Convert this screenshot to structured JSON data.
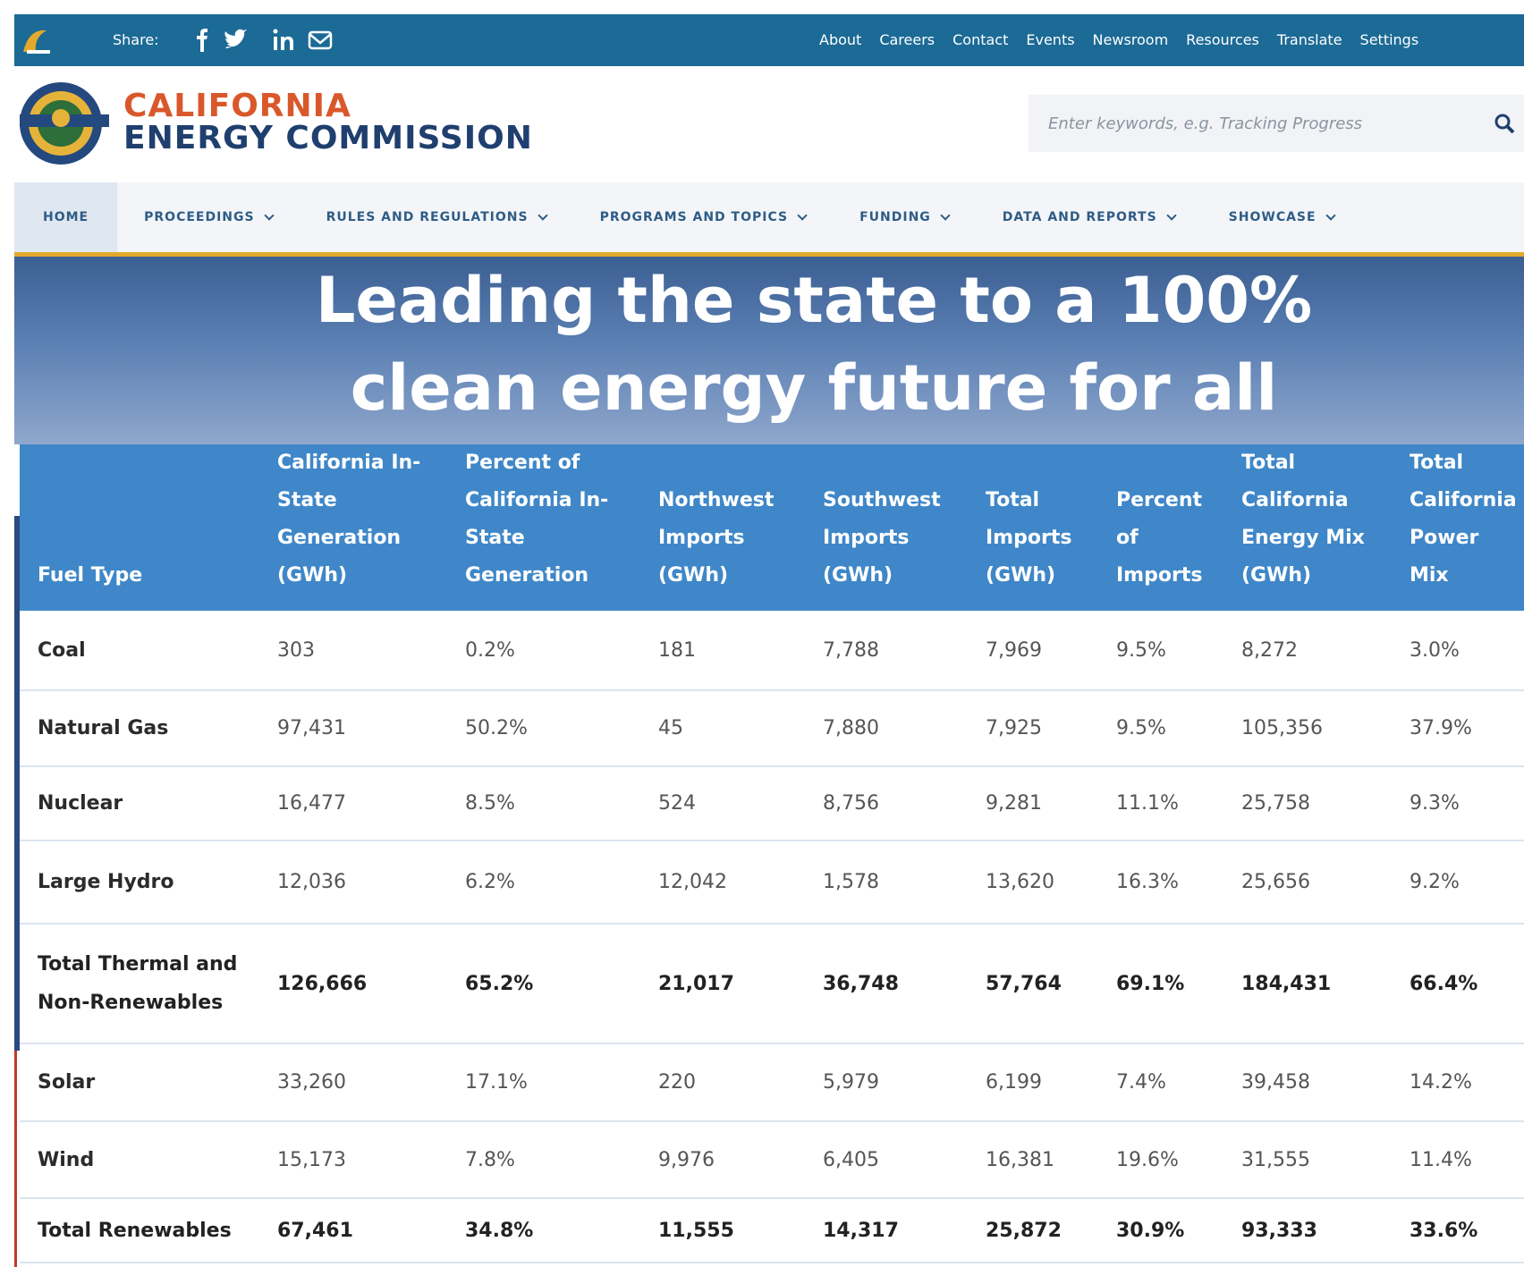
{
  "topbar": {
    "share_label": "Share:",
    "links": [
      "About",
      "Careers",
      "Contact",
      "Events",
      "Newsroom",
      "Resources",
      "Translate",
      "Settings"
    ]
  },
  "header": {
    "title_line1": "CALIFORNIA",
    "title_line2": "ENERGY COMMISSION",
    "search_placeholder": "Enter keywords, e.g. Tracking Progress"
  },
  "nav": [
    "HOME",
    "PROCEEDINGS",
    "RULES AND REGULATIONS",
    "PROGRAMS AND TOPICS",
    "FUNDING",
    "DATA AND REPORTS",
    "SHOWCASE"
  ],
  "hero": {
    "headline_line1": "Leading the state to a 100%",
    "headline_line2": "clean energy future for all"
  },
  "table": {
    "columns": [
      "Fuel Type",
      "California In-State Generation (GWh)",
      "Percent of California In-State Generation",
      "Northwest Imports (GWh)",
      "Southwest Imports (GWh)",
      "Total Imports (GWh)",
      "Percent of Imports",
      "Total California Energy Mix (GWh)",
      "Total California Power Mix"
    ],
    "rows": [
      {
        "bold": false,
        "cells": [
          "Coal",
          "303",
          "0.2%",
          "181",
          "7,788",
          "7,969",
          "9.5%",
          "8,272",
          "3.0%"
        ]
      },
      {
        "bold": false,
        "cells": [
          "Natural Gas",
          "97,431",
          "50.2%",
          "45",
          "7,880",
          "7,925",
          "9.5%",
          "105,356",
          "37.9%"
        ]
      },
      {
        "bold": false,
        "cells": [
          "Nuclear",
          "16,477",
          "8.5%",
          "524",
          "8,756",
          "9,281",
          "11.1%",
          "25,758",
          "9.3%"
        ]
      },
      {
        "bold": false,
        "cells": [
          "Large Hydro",
          "12,036",
          "6.2%",
          "12,042",
          "1,578",
          "13,620",
          "16.3%",
          "25,656",
          "9.2%"
        ]
      },
      {
        "bold": true,
        "cells": [
          "Total Thermal and Non-Renewables",
          "126,666",
          "65.2%",
          "21,017",
          "36,748",
          "57,764",
          "69.1%",
          "184,431",
          "66.4%"
        ]
      },
      {
        "bold": false,
        "cells": [
          "Solar",
          "33,260",
          "17.1%",
          "220",
          "5,979",
          "6,199",
          "7.4%",
          "39,458",
          "14.2%"
        ]
      },
      {
        "bold": false,
        "cells": [
          "Wind",
          "15,173",
          "7.8%",
          "9,976",
          "6,405",
          "16,381",
          "19.6%",
          "31,555",
          "11.4%"
        ]
      },
      {
        "bold": true,
        "cells": [
          "Total Renewables",
          "67,461",
          "34.8%",
          "11,555",
          "14,317",
          "25,872",
          "30.9%",
          "93,333",
          "33.6%"
        ]
      }
    ]
  }
}
